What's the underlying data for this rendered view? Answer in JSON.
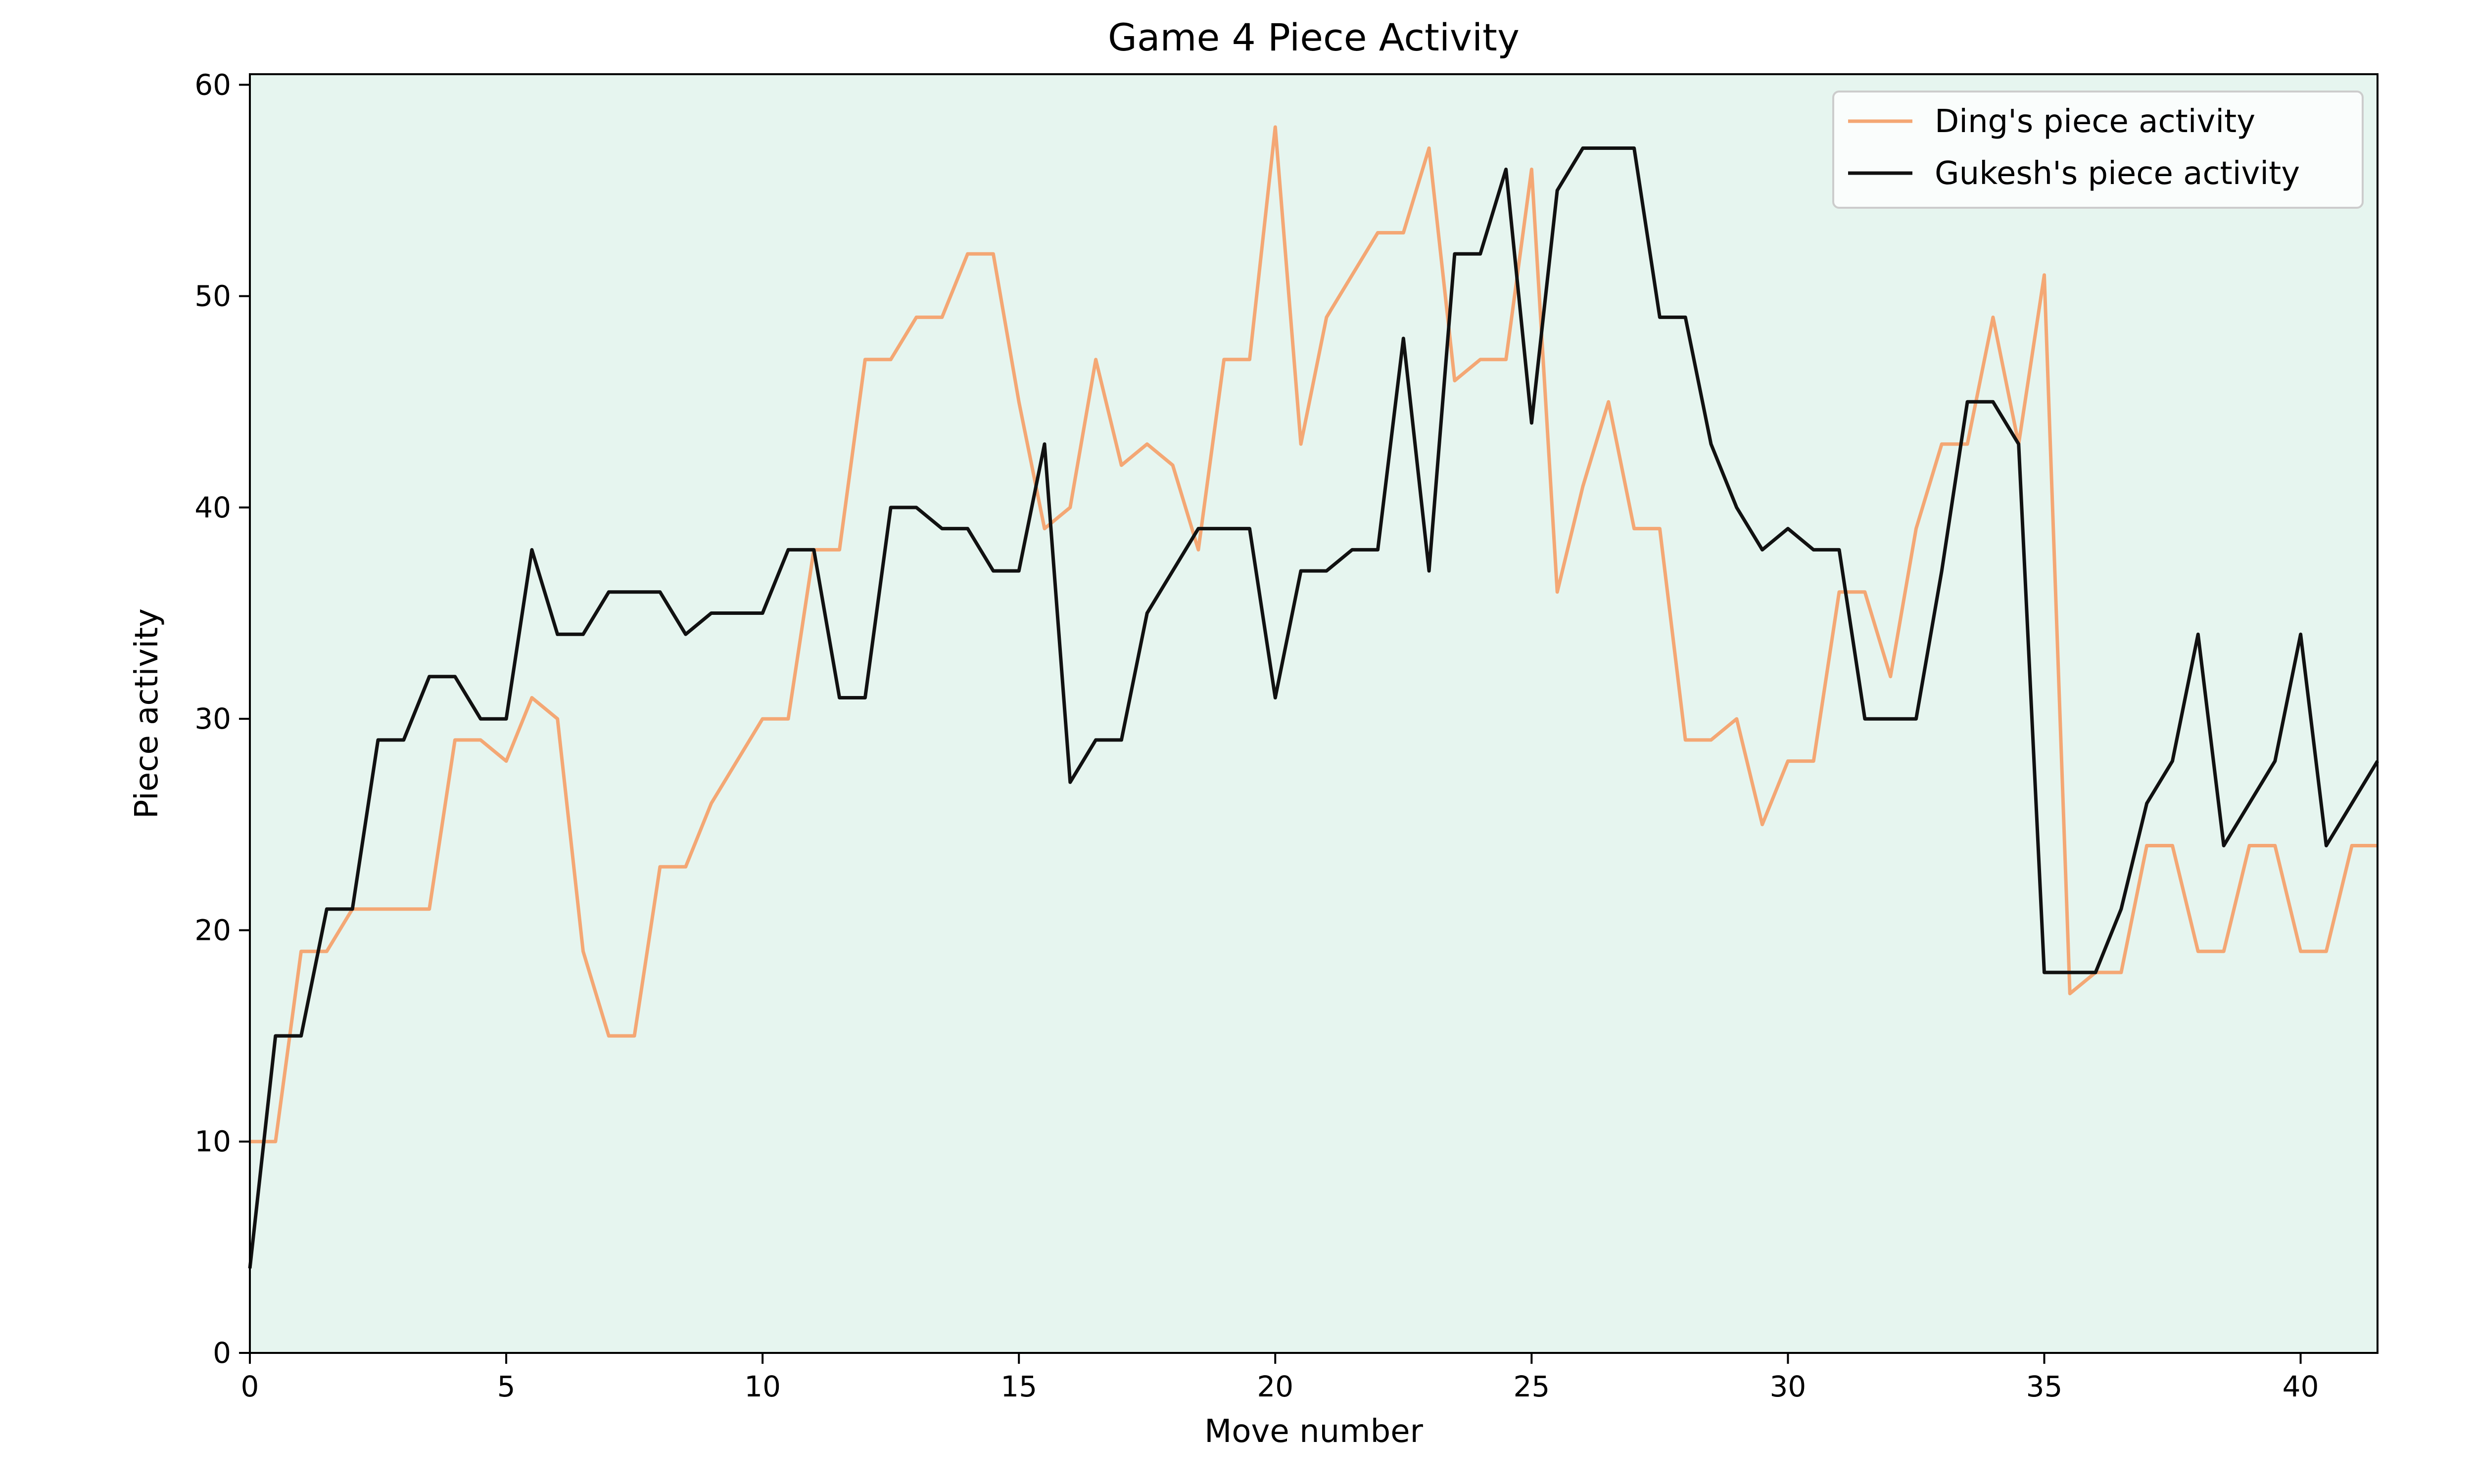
{
  "chart_data": {
    "type": "line",
    "title": "Game 4 Piece Activity",
    "xlabel": "Move number",
    "ylabel": "Piece activity",
    "xlim": [
      0,
      41.5
    ],
    "ylim": [
      0,
      60.5
    ],
    "x_ticks": [
      0,
      5,
      10,
      15,
      20,
      25,
      30,
      35,
      40
    ],
    "y_ticks": [
      0,
      10,
      20,
      30,
      40,
      50,
      60
    ],
    "plot_background": "#e6f5ef",
    "grid": false,
    "legend_position": "top-right",
    "x": [
      0,
      0.5,
      1,
      1.5,
      2,
      2.5,
      3,
      3.5,
      4,
      4.5,
      5,
      5.5,
      6,
      6.5,
      7,
      7.5,
      8,
      8.5,
      9,
      9.5,
      10,
      10.5,
      11,
      11.5,
      12,
      12.5,
      13,
      13.5,
      14,
      14.5,
      15,
      15.5,
      16,
      16.5,
      17,
      17.5,
      18,
      18.5,
      19,
      19.5,
      20,
      20.5,
      21,
      21.5,
      22,
      22.5,
      23,
      23.5,
      24,
      24.5,
      25,
      25.5,
      26,
      26.5,
      27,
      27.5,
      28,
      28.5,
      29,
      29.5,
      30,
      30.5,
      31,
      31.5,
      32,
      32.5,
      33,
      33.5,
      34,
      34.5,
      35,
      35.5,
      36,
      36.5,
      37,
      37.5,
      38,
      38.5,
      39,
      39.5,
      40,
      40.5,
      41,
      41.5
    ],
    "series": [
      {
        "name": "Ding's piece activity",
        "color": "#f4a774",
        "values": [
          10,
          10,
          19,
          19,
          21,
          21,
          21,
          21,
          29,
          29,
          28,
          31,
          30,
          19,
          15,
          15,
          23,
          23,
          26,
          28,
          30,
          30,
          38,
          38,
          47,
          47,
          49,
          49,
          52,
          52,
          45,
          39,
          40,
          47,
          42,
          43,
          42,
          38,
          47,
          47,
          58,
          43,
          49,
          51,
          53,
          53,
          57,
          46,
          47,
          47,
          56,
          36,
          41,
          45,
          39,
          39,
          29,
          29,
          30,
          25,
          28,
          28,
          36,
          36,
          32,
          39,
          43,
          43,
          49,
          43,
          51,
          17,
          18,
          18,
          24,
          24,
          19,
          19,
          24,
          24,
          19,
          19,
          24,
          24
        ]
      },
      {
        "name": "Gukesh's piece activity",
        "color": "#111111",
        "values": [
          4,
          15,
          15,
          21,
          21,
          29,
          29,
          32,
          32,
          30,
          30,
          38,
          34,
          34,
          36,
          36,
          36,
          34,
          35,
          35,
          35,
          38,
          38,
          31,
          31,
          40,
          40,
          39,
          39,
          37,
          37,
          43,
          27,
          29,
          29,
          35,
          37,
          39,
          39,
          39,
          31,
          37,
          37,
          38,
          38,
          48,
          37,
          52,
          52,
          56,
          44,
          55,
          57,
          57,
          57,
          49,
          49,
          43,
          40,
          38,
          39,
          38,
          38,
          30,
          30,
          30,
          37,
          45,
          45,
          43,
          18,
          18,
          18,
          21,
          26,
          28,
          34,
          24,
          26,
          28,
          34,
          24,
          26,
          28
        ]
      }
    ]
  }
}
